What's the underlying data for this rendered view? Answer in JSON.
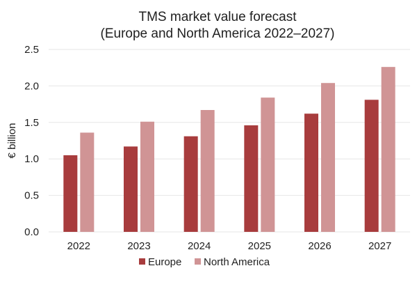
{
  "colors": {
    "europe": "#a83c3d",
    "north_america": "#d09495",
    "grid": "#e6e6e6",
    "text": "#1f1f1f"
  },
  "chart_data": {
    "type": "bar",
    "title": "TMS market value forecast",
    "subtitle": "(Europe and North America 2022–2027)",
    "xlabel": "",
    "ylabel": "€ billion",
    "categories": [
      "2022",
      "2023",
      "2024",
      "2025",
      "2026",
      "2027"
    ],
    "series": [
      {
        "name": "Europe",
        "values": [
          1.05,
          1.17,
          1.31,
          1.46,
          1.62,
          1.81
        ],
        "color": "#a83c3d"
      },
      {
        "name": "North America",
        "values": [
          1.36,
          1.51,
          1.67,
          1.84,
          2.04,
          2.26
        ],
        "color": "#d09495"
      }
    ],
    "ylim": [
      0,
      2.5
    ],
    "yticks": [
      "0.0",
      "0.5",
      "1.0",
      "1.5",
      "2.0",
      "2.5"
    ],
    "grid": true,
    "legend_position": "bottom-center"
  }
}
